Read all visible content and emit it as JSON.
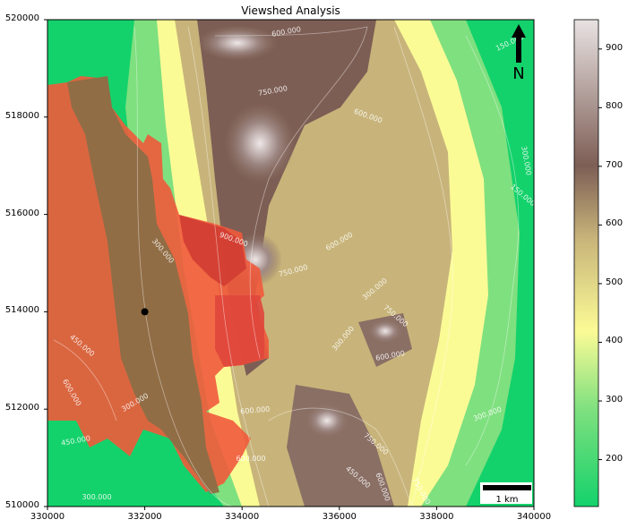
{
  "map": {
    "title": "Viewshed Analysis",
    "north_label": "N",
    "scalebar_label": "1 km",
    "observer": {
      "x": 332000,
      "y": 514000
    },
    "extent": {
      "xmin": 330000,
      "xmax": 340000,
      "ymin": 510000,
      "ymax": 520000
    },
    "x_ticks": [
      "330000",
      "332000",
      "334000",
      "336000",
      "338000",
      "340000"
    ],
    "y_ticks": [
      "510000",
      "512000",
      "514000",
      "516000",
      "518000",
      "520000"
    ],
    "colorbar": {
      "ticks": [
        "200",
        "300",
        "400",
        "500",
        "600",
        "700",
        "800",
        "900"
      ],
      "range": [
        120,
        950
      ],
      "colors": [
        "#14d26b",
        "#7fe07f",
        "#fbfb96",
        "#c8b47a",
        "#7d5e55",
        "#e8e2e2"
      ]
    },
    "contour_labels": [
      "600.000",
      "750.000",
      "600.000",
      "150.000",
      "300.000",
      "150.000",
      "300.000",
      "900.000",
      "750.000",
      "600.000",
      "300.000",
      "750.000",
      "600.000",
      "300.000",
      "450.000",
      "600.000",
      "300.000",
      "600.000",
      "300.000",
      "600.000",
      "450.000",
      "750.000",
      "450.000",
      "600.000",
      "750.000",
      "300.000"
    ],
    "colors": {
      "visible_area": "#f05a3c",
      "valley": "#8c6e46"
    }
  }
}
